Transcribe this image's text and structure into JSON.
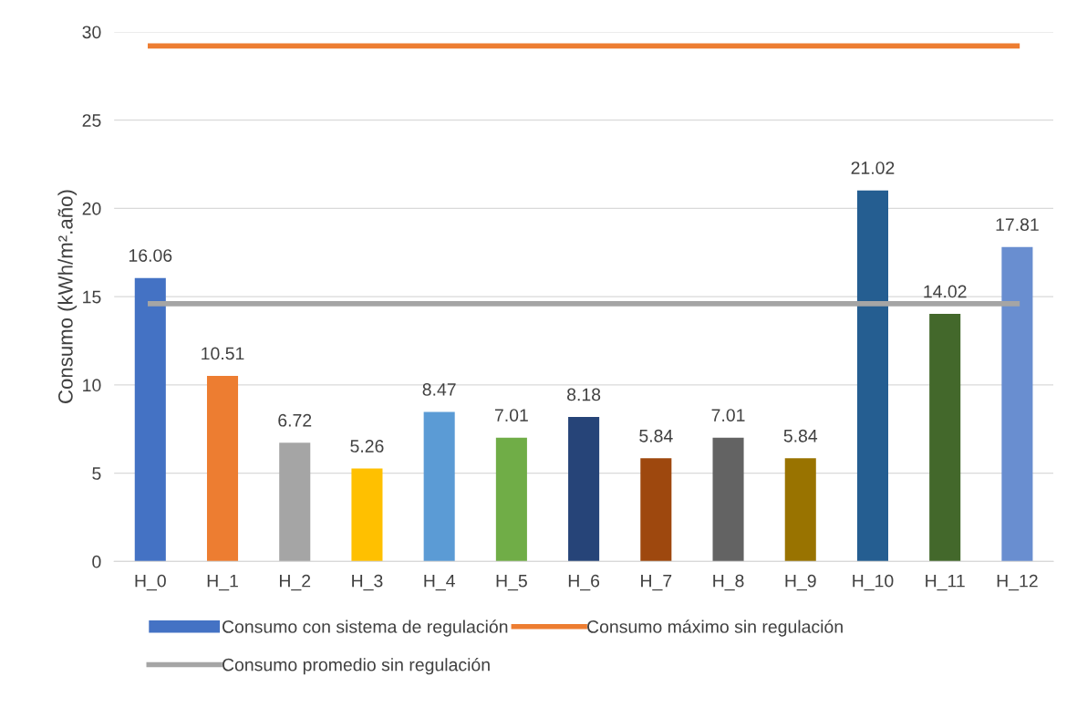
{
  "chart_data": {
    "type": "bar",
    "ylabel": "Consumo (kWh/m².año)",
    "categories": [
      "H_0",
      "H_1",
      "H_2",
      "H_3",
      "H_4",
      "H_5",
      "H_6",
      "H_7",
      "H_8",
      "H_9",
      "H_10",
      "H_11",
      "H_12"
    ],
    "series": [
      {
        "name": "Consumo con sistema de regulación",
        "color": "#4472c4",
        "colors": [
          "#4472c4",
          "#ed7d31",
          "#a5a5a5",
          "#ffc000",
          "#5b9bd5",
          "#70ad47",
          "#264478",
          "#9e480e",
          "#636363",
          "#997300",
          "#255e91",
          "#43682b",
          "#698ed0"
        ],
        "values": [
          16.06,
          10.51,
          6.72,
          5.26,
          8.47,
          7.01,
          8.18,
          5.84,
          7.01,
          5.84,
          21.02,
          14.02,
          17.81
        ],
        "value_labels": [
          "16.06",
          "10.51",
          "6.72",
          "5.26",
          "8.47",
          "7.01",
          "8.18",
          "5.84",
          "7.01",
          "5.84",
          "21.02",
          "14.02",
          "17.81"
        ]
      },
      {
        "name": "Consumo máximo sin regulación",
        "type": "line",
        "color": "#ed7d31",
        "values": [
          29.2,
          29.2,
          29.2,
          29.2,
          29.2,
          29.2,
          29.2,
          29.2,
          29.2,
          29.2,
          29.2,
          29.2,
          29.2
        ]
      },
      {
        "name": "Consumo promedio sin regulación",
        "type": "line",
        "color": "#a5a5a5",
        "values": [
          14.6,
          14.6,
          14.6,
          14.6,
          14.6,
          14.6,
          14.6,
          14.6,
          14.6,
          14.6,
          14.6,
          14.6,
          14.6
        ]
      }
    ],
    "ylim": [
      0,
      30
    ],
    "yticks": [
      0,
      5,
      10,
      15,
      20,
      25,
      30
    ],
    "grid": "y",
    "legend": "bottom"
  }
}
